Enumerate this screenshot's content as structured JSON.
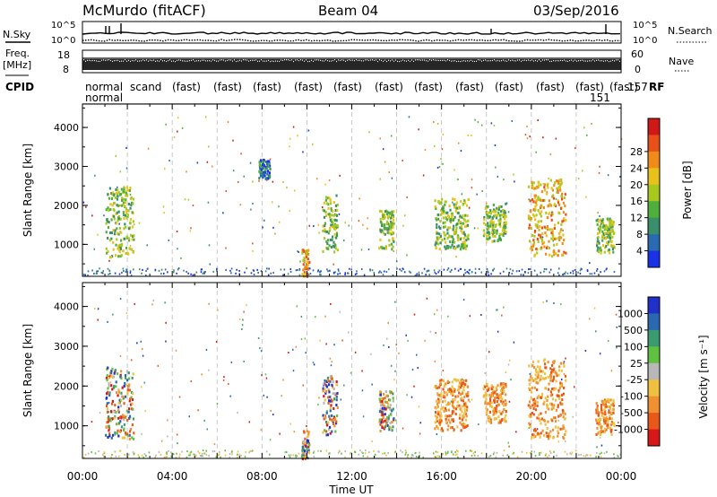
{
  "header": {
    "station": "McMurdo (fitACF)",
    "beam": "Beam 04",
    "date": "03/Sep/2016"
  },
  "side_labels": {
    "nsky": "N.Sky",
    "nsearch": "N.Search",
    "freq_line1": "Freq.",
    "freq_line2": "[MHz]",
    "nave": "Nave",
    "cpid": "CPID",
    "rf": "RF",
    "cpid_num": "151"
  },
  "noise_ticks": {
    "top": "10^5",
    "bottom": "10^0",
    "right_top": "10^5",
    "right_bottom": "10^0"
  },
  "freq_ticks": {
    "left_top": "18",
    "left_bottom": "8",
    "right_top": "60",
    "right_bottom": "0"
  },
  "cpid_rows": {
    "row1": [
      "normal",
      "scand",
      "(fast)",
      "(fast)",
      "(fast)",
      "(fast)",
      "(fast)",
      "(fast)",
      "(fast)",
      "(fast)",
      "(fast)",
      "(fast)",
      "(fast)",
      "(fast)",
      "157",
      "RF"
    ],
    "row2": [
      "normal"
    ]
  },
  "chart_data": [
    {
      "type": "heatmap",
      "title": "Power",
      "ylabel": "Slant Range [km]",
      "xlabel": "",
      "xlim": [
        "00:00",
        "24:00"
      ],
      "ylim": [
        180,
        4600
      ],
      "yticks": [
        1000,
        2000,
        3000,
        4000
      ],
      "colorbar": {
        "label": "Power [dB]",
        "ticks": [
          4,
          8,
          12,
          16,
          20,
          24,
          28
        ],
        "colors": [
          "#1a32e6",
          "#2a6ab0",
          "#3a8f6a",
          "#4fae3c",
          "#a8c81e",
          "#e8c21a",
          "#f08a18",
          "#e8501a",
          "#d01818"
        ]
      },
      "grid": "dashed vertical lines every 2 hours",
      "echo_regions": [
        {
          "t_start": "01:00",
          "t_end": "02:15",
          "r_min": 700,
          "r_max": 2500,
          "level": "medium"
        },
        {
          "t_start": "07:50",
          "t_end": "08:20",
          "r_min": 2700,
          "r_max": 3200,
          "level": "low"
        },
        {
          "t_start": "09:45",
          "t_end": "10:05",
          "r_min": 200,
          "r_max": 900,
          "level": "high"
        },
        {
          "t_start": "10:40",
          "t_end": "11:20",
          "r_min": 800,
          "r_max": 2300,
          "level": "medium"
        },
        {
          "t_start": "13:10",
          "t_end": "13:50",
          "r_min": 900,
          "r_max": 1900,
          "level": "medium"
        },
        {
          "t_start": "15:40",
          "t_end": "17:10",
          "r_min": 900,
          "r_max": 2200,
          "level": "medium"
        },
        {
          "t_start": "17:50",
          "t_end": "18:50",
          "r_min": 1100,
          "r_max": 2100,
          "level": "medium"
        },
        {
          "t_start": "19:50",
          "t_end": "21:30",
          "r_min": 700,
          "r_max": 2700,
          "level": "high"
        },
        {
          "t_start": "22:50",
          "t_end": "23:40",
          "r_min": 800,
          "r_max": 1700,
          "level": "medium"
        }
      ]
    },
    {
      "type": "heatmap",
      "title": "Velocity",
      "ylabel": "Slant Range [km]",
      "xlabel": "Time UT",
      "xlim": [
        "00:00",
        "24:00"
      ],
      "xticks": [
        "00:00",
        "04:00",
        "08:00",
        "12:00",
        "16:00",
        "20:00",
        "00:00"
      ],
      "ylim": [
        180,
        4600
      ],
      "yticks": [
        1000,
        2000,
        3000,
        4000
      ],
      "colorbar": {
        "label": "Velocity [m s⁻¹]",
        "ticks": [
          "1000",
          "500",
          "100",
          "25",
          "-25",
          "-100",
          "-500",
          "-1000"
        ],
        "colors": [
          "#2030c8",
          "#2a68b0",
          "#3a9a70",
          "#60c040",
          "#b8b8b8",
          "#f0c040",
          "#f09030",
          "#e85818",
          "#d81818"
        ]
      },
      "grid": "dashed vertical lines every 2 hours",
      "echo_regions": [
        {
          "t_start": "01:00",
          "t_end": "02:15",
          "r_min": 700,
          "r_max": 2500,
          "level": "mixed"
        },
        {
          "t_start": "09:45",
          "t_end": "10:05",
          "r_min": 200,
          "r_max": 900,
          "level": "mixed"
        },
        {
          "t_start": "10:40",
          "t_end": "11:20",
          "r_min": 800,
          "r_max": 2300,
          "level": "mixed"
        },
        {
          "t_start": "13:10",
          "t_end": "13:50",
          "r_min": 900,
          "r_max": 1900,
          "level": "mixed"
        },
        {
          "t_start": "15:40",
          "t_end": "17:10",
          "r_min": 900,
          "r_max": 2200,
          "level": "negative"
        },
        {
          "t_start": "17:50",
          "t_end": "18:50",
          "r_min": 1100,
          "r_max": 2100,
          "level": "negative"
        },
        {
          "t_start": "19:50",
          "t_end": "21:30",
          "r_min": 700,
          "r_max": 2700,
          "level": "negative"
        },
        {
          "t_start": "22:50",
          "t_end": "23:40",
          "r_min": 800,
          "r_max": 1700,
          "level": "negative"
        }
      ]
    }
  ]
}
